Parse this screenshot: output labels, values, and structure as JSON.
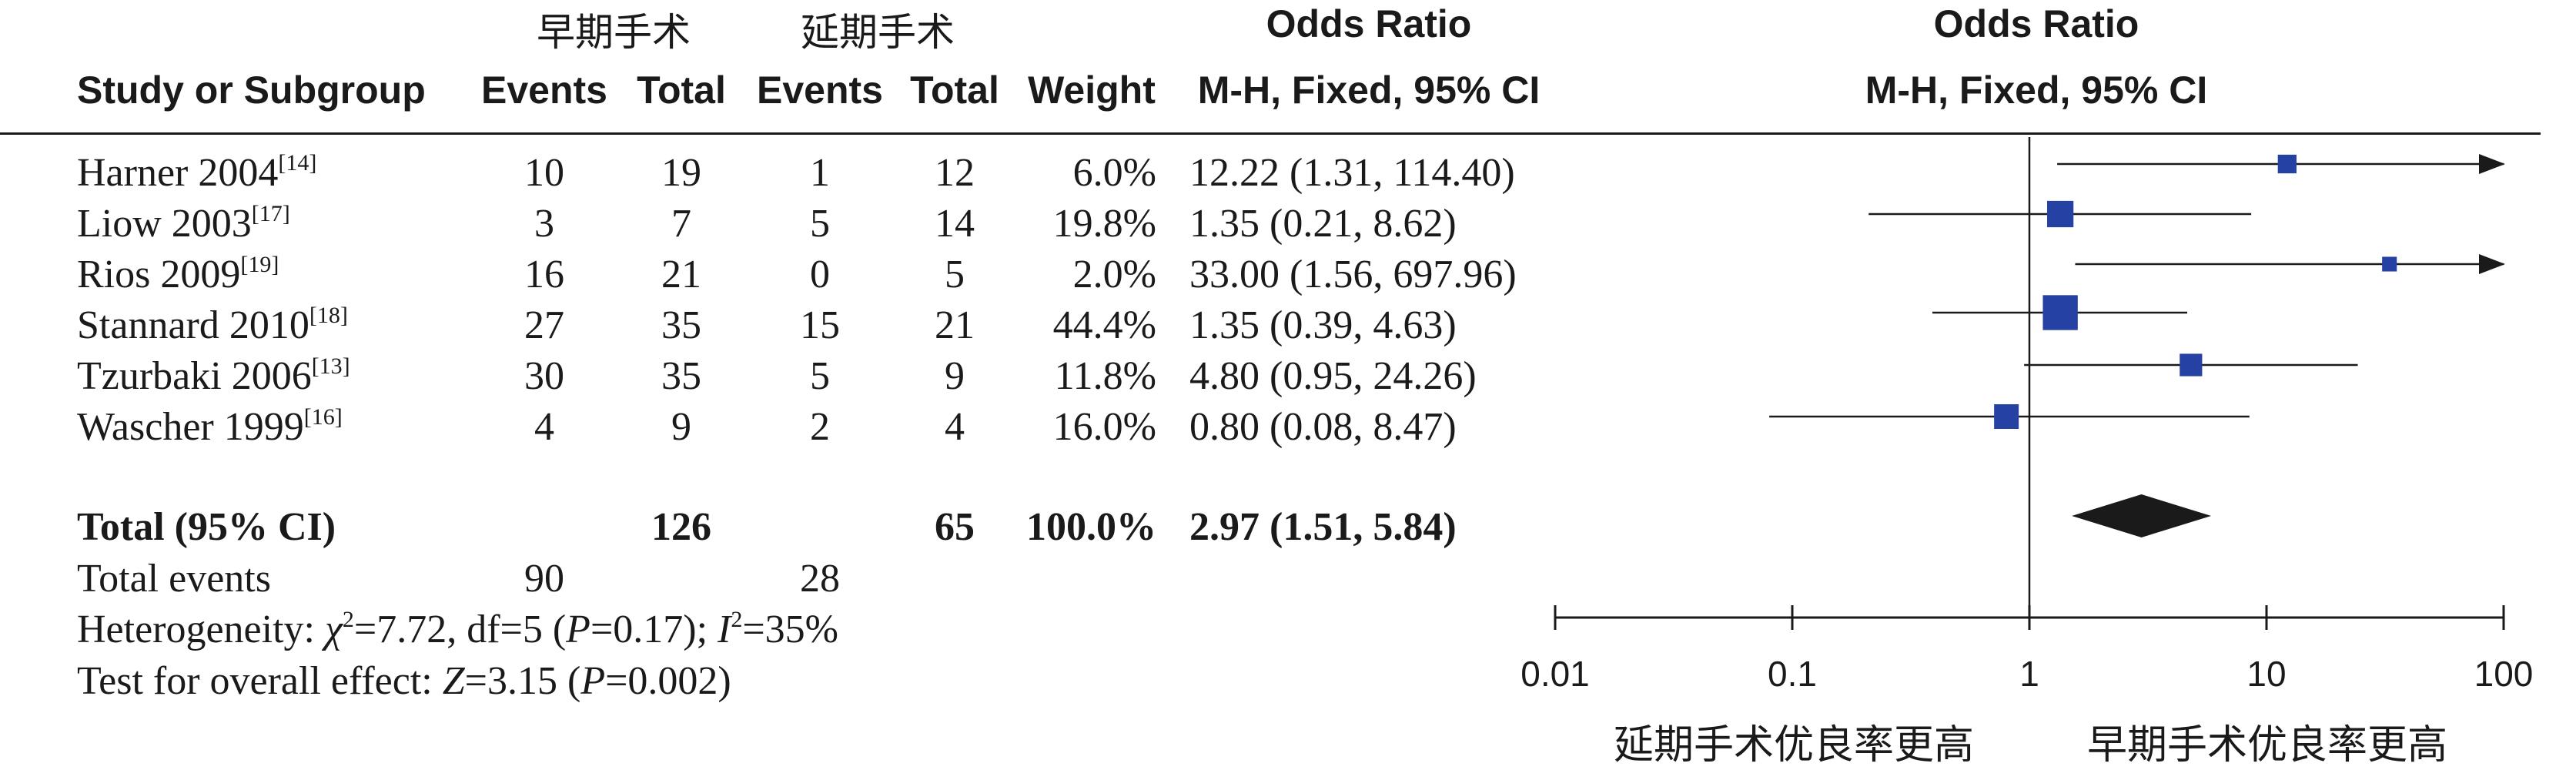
{
  "header": {
    "group_early": "早期手术",
    "group_delayed": "延期手术",
    "or_title_table": "Odds Ratio",
    "or_title_plot": "Odds Ratio",
    "col_study": "Study or Subgroup",
    "col_events_early": "Events",
    "col_total_early": "Total",
    "col_events_delayed": "Events",
    "col_total_delayed": "Total",
    "col_weight": "Weight",
    "col_ci": "M-H, Fixed, 95% CI",
    "col_ci_plot": "M-H, Fixed, 95% CI"
  },
  "studies": [
    {
      "name": "Harner 2004",
      "ref": "[14]",
      "e1": "10",
      "t1": "19",
      "e2": "1",
      "t2": "12",
      "weight": "6.0%",
      "ci": "12.22 (1.31, 114.40)"
    },
    {
      "name": "Liow 2003",
      "ref": "[17]",
      "e1": "3",
      "t1": "7",
      "e2": "5",
      "t2": "14",
      "weight": "19.8%",
      "ci": "1.35 (0.21, 8.62)"
    },
    {
      "name": "Rios 2009",
      "ref": "[19]",
      "e1": "16",
      "t1": "21",
      "e2": "0",
      "t2": "5",
      "weight": "2.0%",
      "ci": "33.00 (1.56, 697.96)"
    },
    {
      "name": "Stannard 2010",
      "ref": "[18]",
      "e1": "27",
      "t1": "35",
      "e2": "15",
      "t2": "21",
      "weight": "44.4%",
      "ci": "1.35 (0.39, 4.63)"
    },
    {
      "name": "Tzurbaki 2006",
      "ref": "[13]",
      "e1": "30",
      "t1": "35",
      "e2": "5",
      "t2": "9",
      "weight": "11.8%",
      "ci": "4.80 (0.95, 24.26)"
    },
    {
      "name": "Wascher 1999",
      "ref": "[16]",
      "e1": "4",
      "t1": "9",
      "e2": "2",
      "t2": "4",
      "weight": "16.0%",
      "ci": "0.80 (0.08, 8.47)"
    }
  ],
  "total": {
    "label": "Total (95% CI)",
    "t1": "126",
    "t2": "65",
    "weight": "100.0%",
    "ci": "2.97 (1.51, 5.84)"
  },
  "total_events": {
    "label": "Total events",
    "e1": "90",
    "e2": "28"
  },
  "heterogeneity": {
    "prefix": "Heterogeneity: ",
    "chi_symbol": "χ",
    "chi_sq_sup": "2",
    "chi_value": "=7.72, df=5 (",
    "p_symbol": "P",
    "p_value": "=0.17); ",
    "i_symbol": "I",
    "i_sup": "2",
    "i_value": "=35%"
  },
  "overall_effect": {
    "prefix": "Test for overall effect: ",
    "z_symbol": "Z",
    "z_value": "=3.15 (",
    "p_symbol": "P",
    "p_value": "=0.002)"
  },
  "axis": {
    "ticks": [
      "0.01",
      "0.1",
      "1",
      "10",
      "100"
    ],
    "label_left": "延期手术优良率更高",
    "label_right": "早期手术优良率更高"
  },
  "chart_data": {
    "type": "forest",
    "scale": "log",
    "xlim": [
      0.01,
      100
    ],
    "ticks": [
      0.01,
      0.1,
      1,
      10,
      100
    ],
    "reference_line": 1,
    "marker_color": "#2541a3",
    "diamond_color": "#1a1a1a",
    "points": [
      {
        "study": "Harner 2004",
        "or": 12.22,
        "lo": 1.31,
        "hi": 114.4,
        "weight": 6.0
      },
      {
        "study": "Liow 2003",
        "or": 1.35,
        "lo": 0.21,
        "hi": 8.62,
        "weight": 19.8
      },
      {
        "study": "Rios 2009",
        "or": 33.0,
        "lo": 1.56,
        "hi": 697.96,
        "weight": 2.0
      },
      {
        "study": "Stannard 2010",
        "or": 1.35,
        "lo": 0.39,
        "hi": 4.63,
        "weight": 44.4
      },
      {
        "study": "Tzurbaki 2006",
        "or": 4.8,
        "lo": 0.95,
        "hi": 24.26,
        "weight": 11.8
      },
      {
        "study": "Wascher 1999",
        "or": 0.8,
        "lo": 0.08,
        "hi": 8.47,
        "weight": 16.0
      }
    ],
    "pooled": {
      "or": 2.97,
      "lo": 1.51,
      "hi": 5.84
    }
  }
}
